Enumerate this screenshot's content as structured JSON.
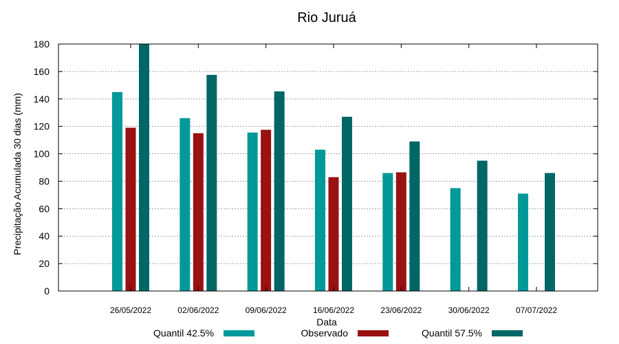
{
  "chart_data": {
    "type": "bar",
    "title": "Rio Juruá",
    "xlabel": "Data",
    "ylabel": "Precipitação Acumulada 30 dias (mm)",
    "ylim": [
      0,
      180
    ],
    "yticks": [
      0,
      20,
      40,
      60,
      80,
      100,
      120,
      140,
      160,
      180
    ],
    "grid": true,
    "legend_position": "bottom",
    "categories": [
      "26/05/2022",
      "02/06/2022",
      "09/06/2022",
      "16/06/2022",
      "23/06/2022",
      "30/06/2022",
      "07/07/2022"
    ],
    "series": [
      {
        "name": "Quantil 42.5%",
        "color": "#009999",
        "values": [
          145,
          126,
          115.5,
          103,
          86,
          75,
          71
        ]
      },
      {
        "name": "Observado",
        "color": "#991111",
        "values": [
          119,
          115,
          117.5,
          83,
          86.5,
          null,
          null
        ]
      },
      {
        "name": "Quantil 57.5%",
        "color": "#006666",
        "values": [
          180,
          157.5,
          145.5,
          127,
          109,
          95,
          86
        ]
      }
    ]
  }
}
